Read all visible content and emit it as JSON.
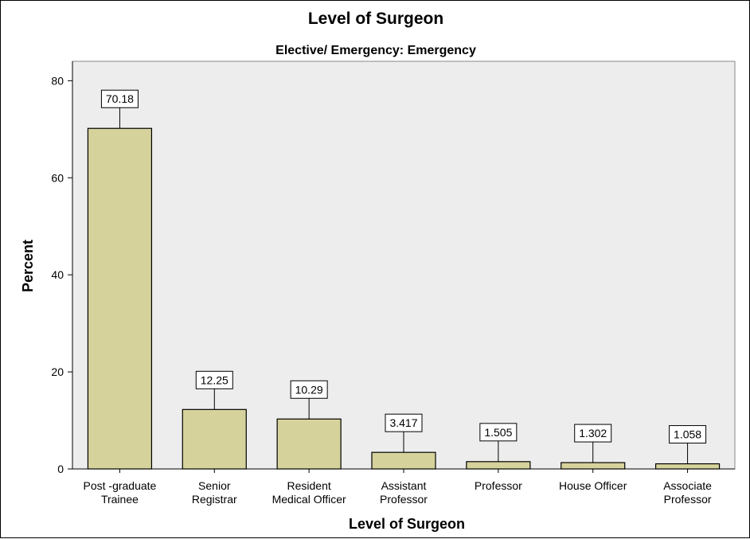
{
  "chart_data": {
    "type": "bar",
    "title": "Level of Surgeon",
    "subtitle": "Elective/ Emergency: Emergency",
    "xlabel": "Level of Surgeon",
    "ylabel": "Percent",
    "ylim": [
      0,
      84
    ],
    "yticks": [
      0,
      20,
      40,
      60,
      80
    ],
    "grid": false,
    "categories": [
      [
        "Post -graduate",
        "Trainee"
      ],
      [
        "Senior",
        "Registrar"
      ],
      [
        "Resident",
        "Medical Officer"
      ],
      [
        "Assistant",
        "Professor"
      ],
      [
        "Professor"
      ],
      [
        "House Officer"
      ],
      [
        "Associate",
        "Professor"
      ]
    ],
    "values": [
      70.18,
      12.25,
      10.29,
      3.417,
      1.505,
      1.302,
      1.058
    ],
    "data_labels": [
      "70.18",
      "12.25",
      "10.29",
      "3.417",
      "1.505",
      "1.302",
      "1.058"
    ],
    "colors": {
      "bar_fill": "#d6d29c",
      "bar_stroke": "#000000",
      "plot_background": "#ededed"
    }
  }
}
